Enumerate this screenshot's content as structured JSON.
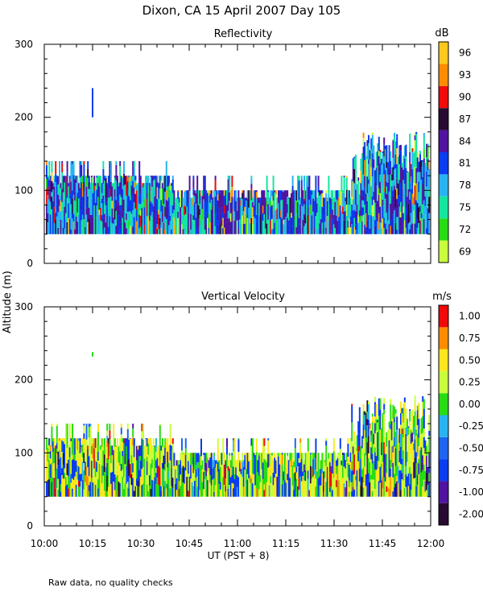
{
  "title": "Dixon, CA 15 April 2007  Day 105",
  "ylabel": "Altitude (m)",
  "xlabel": "UT  (PST + 8)",
  "footnote": "Raw data, no quality checks",
  "chart_data": [
    {
      "type": "heatmap",
      "title": "Reflectivity",
      "ylim": [
        0,
        300
      ],
      "yticks": [
        "0",
        "100",
        "200",
        "300"
      ],
      "xlim": [
        "10:00",
        "12:00"
      ],
      "xticks": [
        "10:00",
        "10:15",
        "10:30",
        "10:45",
        "11:00",
        "11:15",
        "11:30",
        "11:45",
        "12:00"
      ],
      "colorbar": {
        "unit": "dB",
        "labels": [
          "69",
          "72",
          "75",
          "78",
          "81",
          "84",
          "87",
          "90",
          "93",
          "96"
        ],
        "colors": [
          "#c8ff3c",
          "#28dc14",
          "#14e6a0",
          "#28b4f0",
          "#0a3cf0",
          "#5014a0",
          "#280a32",
          "#f00a0a",
          "#ff8c00",
          "#ffc81e"
        ]
      },
      "dominant_colors": [
        "#0a3cf0",
        "#28b4f0",
        "#14e6a0",
        "#5014a0"
      ],
      "echo_base_m": 40,
      "echo_top_m": {
        "10:00-10:40": 120,
        "10:40-11:35": 100,
        "11:35-11:58": 160
      },
      "isolated_echo": {
        "time": "10:15",
        "altitude_m": [
          200,
          240
        ]
      }
    },
    {
      "type": "heatmap",
      "title": "Vertical Velocity",
      "ylim": [
        0,
        300
      ],
      "yticks": [
        "0",
        "100",
        "200",
        "300"
      ],
      "xlim": [
        "10:00",
        "12:00"
      ],
      "xticks": [
        "10:00",
        "10:15",
        "10:30",
        "10:45",
        "11:00",
        "11:15",
        "11:30",
        "11:45",
        "12:00"
      ],
      "colorbar": {
        "unit": "m/s",
        "labels": [
          "-2.00",
          "-1.00",
          "-0.75",
          "-0.50",
          "-0.25",
          "0.00",
          "0.25",
          "0.50",
          "0.75",
          "1.00"
        ],
        "colors": [
          "#280a32",
          "#5014a0",
          "#0a3cf0",
          "#1e64f0",
          "#28b4f0",
          "#28dc14",
          "#c8ff3c",
          "#ffe61e",
          "#ff8c00",
          "#f00a0a"
        ]
      },
      "dominant_colors": [
        "#28dc14",
        "#c8ff3c",
        "#0a3cf0",
        "#ffe61e"
      ],
      "echo_base_m": 40,
      "echo_top_m": {
        "10:00-10:40": 120,
        "10:40-11:35": 100,
        "11:35-11:58": 160
      },
      "isolated_echo": {
        "time": "10:15",
        "altitude_m": [
          232,
          238
        ]
      }
    }
  ]
}
